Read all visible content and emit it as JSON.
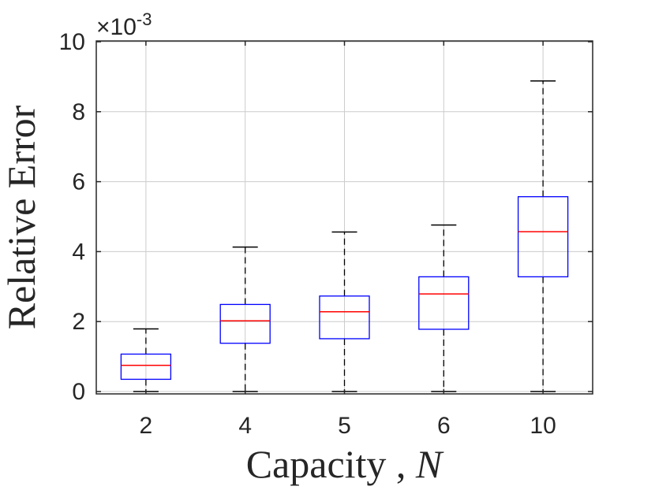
{
  "chart_data": {
    "type": "box",
    "xlabel": "Capacity , ",
    "xlabel_var": "N",
    "ylabel": "Relative Error",
    "y_multiplier_base": "×10",
    "y_multiplier_exp": "-3",
    "ylim": [
      0,
      10
    ],
    "yticks": [
      0,
      2,
      4,
      6,
      8,
      10
    ],
    "ytick_labels": [
      "0",
      "2",
      "4",
      "6",
      "8",
      "10"
    ],
    "grid": true,
    "categories": [
      "2",
      "4",
      "5",
      "6",
      "10"
    ],
    "boxes": [
      {
        "category": "2",
        "min": 0.0,
        "q1": 0.35,
        "median": 0.75,
        "q3": 1.07,
        "max": 1.79
      },
      {
        "category": "4",
        "min": 0.0,
        "q1": 1.38,
        "median": 2.02,
        "q3": 2.49,
        "max": 4.13
      },
      {
        "category": "5",
        "min": 0.0,
        "q1": 1.51,
        "median": 2.28,
        "q3": 2.73,
        "max": 4.56
      },
      {
        "category": "6",
        "min": 0.0,
        "q1": 1.78,
        "median": 2.79,
        "q3": 3.28,
        "max": 4.76
      },
      {
        "category": "10",
        "min": 0.0,
        "q1": 3.28,
        "median": 4.57,
        "q3": 5.57,
        "max": 8.88
      }
    ],
    "colors": {
      "box": "#0000ff",
      "median": "#ff0000",
      "whisker": "#000000",
      "grid": "#cccccc",
      "axis": "#262626"
    }
  }
}
